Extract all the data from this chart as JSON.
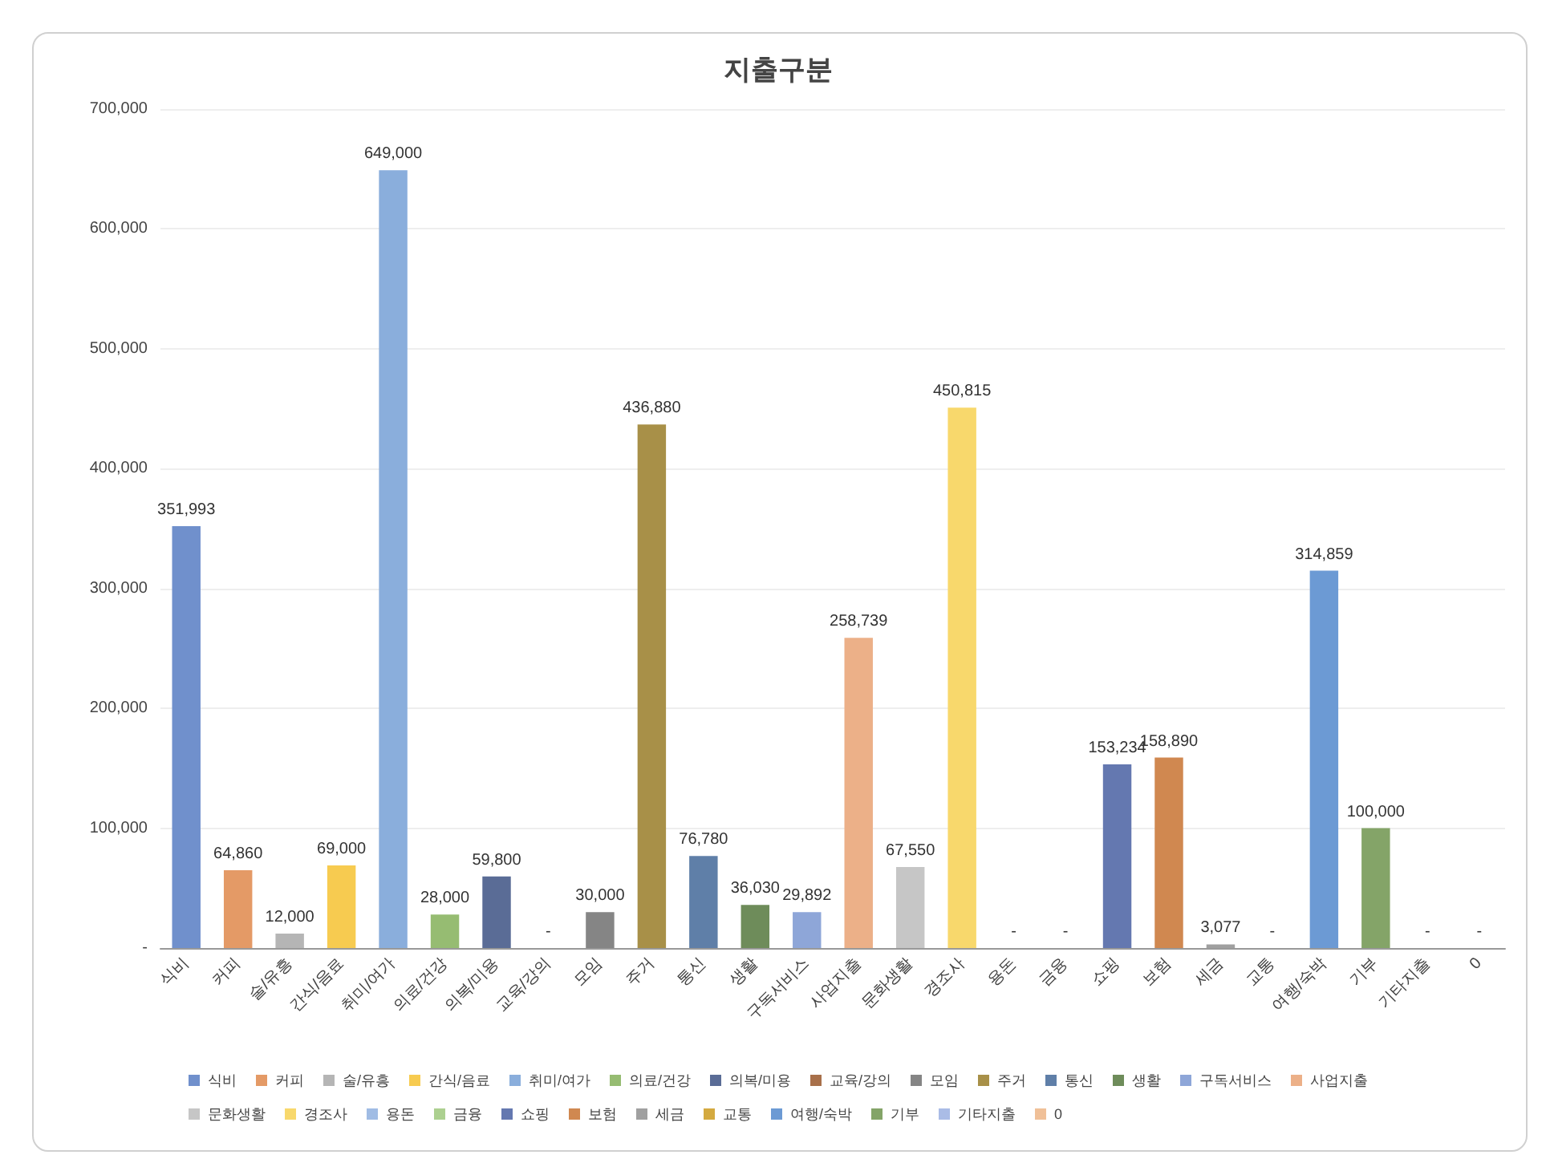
{
  "chart_data": {
    "type": "bar",
    "title": "지출구분",
    "stacked": true,
    "categories": [
      "식비",
      "커피",
      "술/유흥",
      "간식/음료",
      "취미/여가",
      "의료/건강",
      "의복/미용",
      "교육/강의",
      "모임",
      "주거",
      "통신",
      "생활",
      "구독서비스",
      "사업지출",
      "문화생활",
      "경조사",
      "용돈",
      "금융",
      "쇼핑",
      "보험",
      "세금",
      "교통",
      "여행/숙박",
      "기부",
      "기타지출",
      "0"
    ],
    "series": [
      {
        "name": "식비",
        "color": "#7090cc",
        "values": [
          351993,
          null,
          null,
          null,
          null,
          null,
          null,
          null,
          null,
          null,
          null,
          null,
          null,
          null,
          null,
          null,
          null,
          null,
          null,
          null,
          null,
          null,
          null,
          null,
          null,
          null
        ],
        "value_labels": [
          "351,993",
          null,
          null,
          null,
          null,
          null,
          null,
          null,
          null,
          null,
          null,
          null,
          null,
          null,
          null,
          null,
          null,
          null,
          null,
          null,
          null,
          null,
          null,
          null,
          null,
          null
        ]
      },
      {
        "name": "커피",
        "color": "#e49a66",
        "values": [
          null,
          64860,
          null,
          null,
          null,
          null,
          null,
          null,
          null,
          null,
          null,
          null,
          null,
          null,
          null,
          null,
          null,
          null,
          null,
          null,
          null,
          null,
          null,
          null,
          null,
          null
        ],
        "value_labels": [
          null,
          "64,860",
          null,
          null,
          null,
          null,
          null,
          null,
          null,
          null,
          null,
          null,
          null,
          null,
          null,
          null,
          null,
          null,
          null,
          null,
          null,
          null,
          null,
          null,
          null,
          null
        ]
      },
      {
        "name": "술/유흥",
        "color": "#b5b5b5",
        "values": [
          null,
          null,
          12000,
          null,
          null,
          null,
          null,
          null,
          null,
          null,
          null,
          null,
          null,
          null,
          null,
          null,
          null,
          null,
          null,
          null,
          null,
          null,
          null,
          null,
          null,
          null
        ],
        "value_labels": [
          null,
          null,
          "12,000",
          null,
          null,
          null,
          null,
          null,
          null,
          null,
          null,
          null,
          null,
          null,
          null,
          null,
          null,
          null,
          null,
          null,
          null,
          null,
          null,
          null,
          null,
          null
        ]
      },
      {
        "name": "간식/음료",
        "color": "#f7cb50",
        "values": [
          null,
          null,
          null,
          69000,
          null,
          null,
          null,
          null,
          null,
          null,
          null,
          null,
          null,
          null,
          null,
          null,
          null,
          null,
          null,
          null,
          null,
          null,
          null,
          null,
          null,
          null
        ],
        "value_labels": [
          null,
          null,
          null,
          "69,000",
          null,
          null,
          null,
          null,
          null,
          null,
          null,
          null,
          null,
          null,
          null,
          null,
          null,
          null,
          null,
          null,
          null,
          null,
          null,
          null,
          null,
          null
        ]
      },
      {
        "name": "취미/여가",
        "color": "#8aaedc",
        "values": [
          null,
          null,
          null,
          null,
          649000,
          null,
          null,
          null,
          null,
          null,
          null,
          null,
          null,
          null,
          null,
          null,
          null,
          null,
          null,
          null,
          null,
          null,
          null,
          null,
          null,
          null
        ],
        "value_labels": [
          null,
          null,
          null,
          null,
          "649,000",
          null,
          null,
          null,
          null,
          null,
          null,
          null,
          null,
          null,
          null,
          null,
          null,
          null,
          null,
          null,
          null,
          null,
          null,
          null,
          null,
          null
        ]
      },
      {
        "name": "의료/건강",
        "color": "#96bc72",
        "values": [
          null,
          null,
          null,
          null,
          null,
          28000,
          null,
          null,
          null,
          null,
          null,
          null,
          null,
          null,
          null,
          null,
          null,
          null,
          null,
          null,
          null,
          null,
          null,
          null,
          null,
          null
        ],
        "value_labels": [
          null,
          null,
          null,
          null,
          null,
          "28,000",
          null,
          null,
          null,
          null,
          null,
          null,
          null,
          null,
          null,
          null,
          null,
          null,
          null,
          null,
          null,
          null,
          null,
          null,
          null,
          null
        ]
      },
      {
        "name": "의복/미용",
        "color": "#5a6c96",
        "values": [
          null,
          null,
          null,
          null,
          null,
          null,
          59800,
          null,
          null,
          null,
          null,
          null,
          null,
          null,
          null,
          null,
          null,
          null,
          null,
          null,
          null,
          null,
          null,
          null,
          null,
          null
        ],
        "value_labels": [
          null,
          null,
          null,
          null,
          null,
          null,
          "59,800",
          null,
          null,
          null,
          null,
          null,
          null,
          null,
          null,
          null,
          null,
          null,
          null,
          null,
          null,
          null,
          null,
          null,
          null,
          null
        ]
      },
      {
        "name": "교육/강의",
        "color": "#a8704a",
        "values": [
          null,
          null,
          null,
          null,
          null,
          null,
          null,
          0,
          null,
          null,
          null,
          null,
          null,
          null,
          null,
          null,
          null,
          null,
          null,
          null,
          null,
          null,
          null,
          null,
          null,
          null
        ],
        "value_labels": [
          null,
          null,
          null,
          null,
          null,
          null,
          null,
          "-",
          null,
          null,
          null,
          null,
          null,
          null,
          null,
          null,
          null,
          null,
          null,
          null,
          null,
          null,
          null,
          null,
          null,
          null
        ]
      },
      {
        "name": "모임",
        "color": "#858585",
        "values": [
          null,
          null,
          null,
          null,
          null,
          null,
          null,
          null,
          30000,
          null,
          null,
          null,
          null,
          null,
          null,
          null,
          null,
          null,
          null,
          null,
          null,
          null,
          null,
          null,
          null,
          null
        ],
        "value_labels": [
          null,
          null,
          null,
          null,
          null,
          null,
          null,
          null,
          "30,000",
          null,
          null,
          null,
          null,
          null,
          null,
          null,
          null,
          null,
          null,
          null,
          null,
          null,
          null,
          null,
          null,
          null
        ]
      },
      {
        "name": "주거",
        "color": "#a89048",
        "values": [
          null,
          null,
          null,
          null,
          null,
          null,
          null,
          null,
          null,
          436880,
          null,
          null,
          null,
          null,
          null,
          null,
          null,
          null,
          null,
          null,
          null,
          null,
          null,
          null,
          null,
          null
        ],
        "value_labels": [
          null,
          null,
          null,
          null,
          null,
          null,
          null,
          null,
          null,
          "436,880",
          null,
          null,
          null,
          null,
          null,
          null,
          null,
          null,
          null,
          null,
          null,
          null,
          null,
          null,
          null,
          null
        ]
      },
      {
        "name": "통신",
        "color": "#5f7fa8",
        "values": [
          null,
          null,
          null,
          null,
          null,
          null,
          null,
          null,
          null,
          null,
          76780,
          null,
          null,
          null,
          null,
          null,
          null,
          null,
          null,
          null,
          null,
          null,
          null,
          null,
          null,
          null
        ],
        "value_labels": [
          null,
          null,
          null,
          null,
          null,
          null,
          null,
          null,
          null,
          null,
          "76,780",
          null,
          null,
          null,
          null,
          null,
          null,
          null,
          null,
          null,
          null,
          null,
          null,
          null,
          null,
          null
        ]
      },
      {
        "name": "생활",
        "color": "#6e8c5a",
        "values": [
          null,
          null,
          null,
          null,
          null,
          null,
          null,
          null,
          null,
          null,
          null,
          36030,
          null,
          null,
          null,
          null,
          null,
          null,
          null,
          null,
          null,
          null,
          null,
          null,
          null,
          null
        ],
        "value_labels": [
          null,
          null,
          null,
          null,
          null,
          null,
          null,
          null,
          null,
          null,
          null,
          "36,030",
          null,
          null,
          null,
          null,
          null,
          null,
          null,
          null,
          null,
          null,
          null,
          null,
          null,
          null
        ]
      },
      {
        "name": "구독서비스",
        "color": "#8ea6d8",
        "values": [
          null,
          null,
          null,
          null,
          null,
          null,
          null,
          null,
          null,
          null,
          null,
          null,
          29892,
          null,
          null,
          null,
          null,
          null,
          null,
          null,
          null,
          null,
          null,
          null,
          null,
          null
        ],
        "value_labels": [
          null,
          null,
          null,
          null,
          null,
          null,
          null,
          null,
          null,
          null,
          null,
          null,
          "29,892",
          null,
          null,
          null,
          null,
          null,
          null,
          null,
          null,
          null,
          null,
          null,
          null,
          null
        ]
      },
      {
        "name": "사업지출",
        "color": "#ecb088",
        "values": [
          null,
          null,
          null,
          null,
          null,
          null,
          null,
          null,
          null,
          null,
          null,
          null,
          null,
          258739,
          null,
          null,
          null,
          null,
          null,
          null,
          null,
          null,
          null,
          null,
          null,
          null
        ],
        "value_labels": [
          null,
          null,
          null,
          null,
          null,
          null,
          null,
          null,
          null,
          null,
          null,
          null,
          null,
          "258,739",
          null,
          null,
          null,
          null,
          null,
          null,
          null,
          null,
          null,
          null,
          null,
          null
        ]
      },
      {
        "name": "문화생활",
        "color": "#c6c6c6",
        "values": [
          null,
          null,
          null,
          null,
          null,
          null,
          null,
          null,
          null,
          null,
          null,
          null,
          null,
          null,
          67550,
          null,
          null,
          null,
          null,
          null,
          null,
          null,
          null,
          null,
          null,
          null
        ],
        "value_labels": [
          null,
          null,
          null,
          null,
          null,
          null,
          null,
          null,
          null,
          null,
          null,
          null,
          null,
          null,
          "67,550",
          null,
          null,
          null,
          null,
          null,
          null,
          null,
          null,
          null,
          null,
          null
        ]
      },
      {
        "name": "경조사",
        "color": "#f8d86c",
        "values": [
          null,
          null,
          null,
          null,
          null,
          null,
          null,
          null,
          null,
          null,
          null,
          null,
          null,
          null,
          null,
          450815,
          null,
          null,
          null,
          null,
          null,
          null,
          null,
          null,
          null,
          null
        ],
        "value_labels": [
          null,
          null,
          null,
          null,
          null,
          null,
          null,
          null,
          null,
          null,
          null,
          null,
          null,
          null,
          null,
          "450,815",
          null,
          null,
          null,
          null,
          null,
          null,
          null,
          null,
          null,
          null
        ]
      },
      {
        "name": "용돈",
        "color": "#a0bce4",
        "values": [
          null,
          null,
          null,
          null,
          null,
          null,
          null,
          null,
          null,
          null,
          null,
          null,
          null,
          null,
          null,
          null,
          0,
          null,
          null,
          null,
          null,
          null,
          null,
          null,
          null,
          null
        ],
        "value_labels": [
          null,
          null,
          null,
          null,
          null,
          null,
          null,
          null,
          null,
          null,
          null,
          null,
          null,
          null,
          null,
          null,
          "-",
          null,
          null,
          null,
          null,
          null,
          null,
          null,
          null,
          null
        ]
      },
      {
        "name": "금융",
        "color": "#acd090",
        "values": [
          null,
          null,
          null,
          null,
          null,
          null,
          null,
          null,
          null,
          null,
          null,
          null,
          null,
          null,
          null,
          null,
          null,
          0,
          null,
          null,
          null,
          null,
          null,
          null,
          null,
          null
        ],
        "value_labels": [
          null,
          null,
          null,
          null,
          null,
          null,
          null,
          null,
          null,
          null,
          null,
          null,
          null,
          null,
          null,
          null,
          null,
          "-",
          null,
          null,
          null,
          null,
          null,
          null,
          null,
          null
        ]
      },
      {
        "name": "쇼핑",
        "color": "#6478b0",
        "values": [
          null,
          null,
          null,
          null,
          null,
          null,
          null,
          null,
          null,
          null,
          null,
          null,
          null,
          null,
          null,
          null,
          null,
          null,
          153234,
          null,
          null,
          null,
          null,
          null,
          null,
          null
        ],
        "value_labels": [
          null,
          null,
          null,
          null,
          null,
          null,
          null,
          null,
          null,
          null,
          null,
          null,
          null,
          null,
          null,
          null,
          null,
          null,
          "153,234",
          null,
          null,
          null,
          null,
          null,
          null,
          null
        ]
      },
      {
        "name": "보험",
        "color": "#d08850",
        "values": [
          null,
          null,
          null,
          null,
          null,
          null,
          null,
          null,
          null,
          null,
          null,
          null,
          null,
          null,
          null,
          null,
          null,
          null,
          null,
          158890,
          null,
          null,
          null,
          null,
          null,
          null
        ],
        "value_labels": [
          null,
          null,
          null,
          null,
          null,
          null,
          null,
          null,
          null,
          null,
          null,
          null,
          null,
          null,
          null,
          null,
          null,
          null,
          null,
          "158,890",
          null,
          null,
          null,
          null,
          null,
          null
        ]
      },
      {
        "name": "세금",
        "color": "#a0a0a0",
        "values": [
          null,
          null,
          null,
          null,
          null,
          null,
          null,
          null,
          null,
          null,
          null,
          null,
          null,
          null,
          null,
          null,
          null,
          null,
          null,
          null,
          3077,
          null,
          null,
          null,
          null,
          null
        ],
        "value_labels": [
          null,
          null,
          null,
          null,
          null,
          null,
          null,
          null,
          null,
          null,
          null,
          null,
          null,
          null,
          null,
          null,
          null,
          null,
          null,
          null,
          "3,077",
          null,
          null,
          null,
          null,
          null
        ]
      },
      {
        "name": "교통",
        "color": "#d4aa40",
        "values": [
          null,
          null,
          null,
          null,
          null,
          null,
          null,
          null,
          null,
          null,
          null,
          null,
          null,
          null,
          null,
          null,
          null,
          null,
          null,
          null,
          null,
          0,
          null,
          null,
          null,
          null
        ],
        "value_labels": [
          null,
          null,
          null,
          null,
          null,
          null,
          null,
          null,
          null,
          null,
          null,
          null,
          null,
          null,
          null,
          null,
          null,
          null,
          null,
          null,
          null,
          "-",
          null,
          null,
          null,
          null
        ]
      },
      {
        "name": "여행/숙박",
        "color": "#6c9ad4",
        "values": [
          null,
          null,
          null,
          null,
          null,
          null,
          null,
          null,
          null,
          null,
          null,
          null,
          null,
          null,
          null,
          null,
          null,
          null,
          null,
          null,
          null,
          null,
          314859,
          null,
          null,
          null
        ],
        "value_labels": [
          null,
          null,
          null,
          null,
          null,
          null,
          null,
          null,
          null,
          null,
          null,
          null,
          null,
          null,
          null,
          null,
          null,
          null,
          null,
          null,
          null,
          null,
          "314,859",
          null,
          null,
          null
        ]
      },
      {
        "name": "기부",
        "color": "#84a468",
        "values": [
          null,
          null,
          null,
          null,
          null,
          null,
          null,
          null,
          null,
          null,
          null,
          null,
          null,
          null,
          null,
          null,
          null,
          null,
          null,
          null,
          null,
          null,
          null,
          100000,
          null,
          null
        ],
        "value_labels": [
          null,
          null,
          null,
          null,
          null,
          null,
          null,
          null,
          null,
          null,
          null,
          null,
          null,
          null,
          null,
          null,
          null,
          null,
          null,
          null,
          null,
          null,
          null,
          "100,000",
          null,
          null
        ]
      },
      {
        "name": "기타지출",
        "color": "#aabce6",
        "values": [
          null,
          null,
          null,
          null,
          null,
          null,
          null,
          null,
          null,
          null,
          null,
          null,
          null,
          null,
          null,
          null,
          null,
          null,
          null,
          null,
          null,
          null,
          null,
          null,
          0,
          null
        ],
        "value_labels": [
          null,
          null,
          null,
          null,
          null,
          null,
          null,
          null,
          null,
          null,
          null,
          null,
          null,
          null,
          null,
          null,
          null,
          null,
          null,
          null,
          null,
          null,
          null,
          null,
          "-",
          null
        ]
      },
      {
        "name": "0",
        "color": "#f0c098",
        "values": [
          null,
          null,
          null,
          null,
          null,
          null,
          null,
          null,
          null,
          null,
          null,
          null,
          null,
          null,
          null,
          null,
          null,
          null,
          null,
          null,
          null,
          null,
          null,
          null,
          null,
          0
        ],
        "value_labels": [
          null,
          null,
          null,
          null,
          null,
          null,
          null,
          null,
          null,
          null,
          null,
          null,
          null,
          null,
          null,
          null,
          null,
          null,
          null,
          null,
          null,
          null,
          null,
          null,
          null,
          "-"
        ]
      }
    ],
    "ylim": [
      0,
      700000
    ],
    "yticks": [
      {
        "value": 0,
        "label": "-"
      },
      {
        "value": 100000,
        "label": "100,000"
      },
      {
        "value": 200000,
        "label": "200,000"
      },
      {
        "value": 300000,
        "label": "300,000"
      },
      {
        "value": 400000,
        "label": "400,000"
      },
      {
        "value": 500000,
        "label": "500,000"
      },
      {
        "value": 600000,
        "label": "600,000"
      },
      {
        "value": 700000,
        "label": "700,000"
      }
    ],
    "grid": "y",
    "legend": "bottom"
  }
}
